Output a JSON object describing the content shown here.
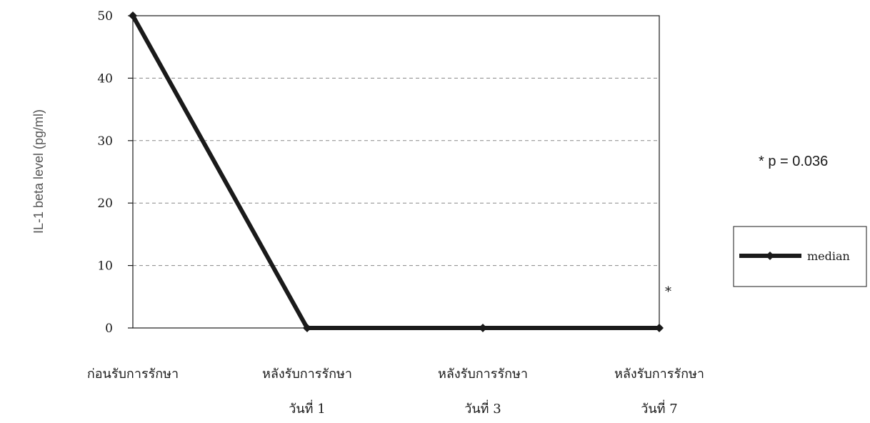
{
  "chart_data": {
    "type": "line",
    "title": "",
    "xlabel": "",
    "ylabel": "IL-1 beta level (pg/ml)",
    "ylim": [
      0,
      50
    ],
    "yticks": [
      "0",
      "10",
      "20",
      "30",
      "40",
      "50"
    ],
    "grid": "horizontal dashed",
    "categories": [
      [
        "ก่อนรับการรักษา"
      ],
      [
        "หลังรับการรักษา",
        "วันที่ 1"
      ],
      [
        "หลังรับการรักษา",
        "วันที่ 3"
      ],
      [
        "หลังรับการรักษา",
        "วันที่ 7"
      ]
    ],
    "series": [
      {
        "name": "median",
        "values": [
          50,
          0,
          0,
          0
        ]
      }
    ],
    "legend_position": "right",
    "annotations": {
      "significance_marker": "*",
      "p_value_text": "* p = 0.036"
    },
    "colors": {
      "line": "#1a1a1a",
      "grid": "#888888",
      "axis": "#1a1a1a"
    }
  }
}
